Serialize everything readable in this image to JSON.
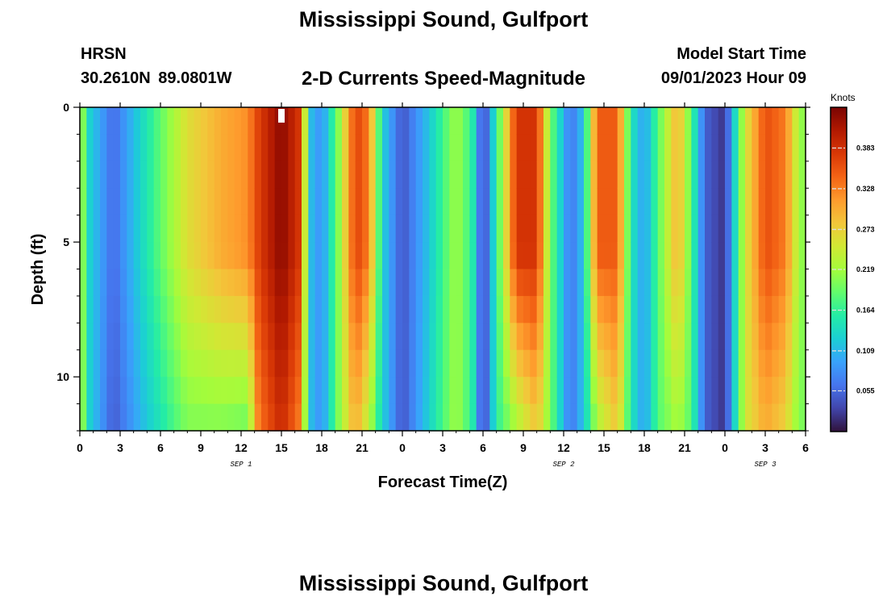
{
  "title": "Mississippi Sound, Gulfport",
  "station": {
    "id": "HRSN",
    "coords": "30.2610N  89.0801W"
  },
  "subtitle": "2-D Currents Speed-Magnitude",
  "model_start": {
    "label": "Model Start Time",
    "value": "09/01/2023 Hour 09"
  },
  "colors": {
    "colormap": [
      "#30123b",
      "#4145ab",
      "#4675ed",
      "#39a2fc",
      "#1bcfd4",
      "#24eca6",
      "#61fc6c",
      "#a4fc3b",
      "#d1e834",
      "#f3c63a",
      "#fe9b2d",
      "#f36315",
      "#d93806",
      "#b11901",
      "#7a0402"
    ],
    "marker": "#ffffff",
    "axis": "#000000"
  },
  "chart_data": {
    "type": "heatmap",
    "title": "2-D Currents Speed-Magnitude",
    "xlabel": "Forecast Time(Z)",
    "ylabel": "Depth (ft)",
    "x_range_hours": [
      0,
      54
    ],
    "x_step_hours": 0.5,
    "y_range_ft": [
      0,
      12
    ],
    "y_inverted": true,
    "x_ticks": {
      "hours": [
        0,
        3,
        6,
        9,
        12,
        15,
        18,
        21,
        24,
        27,
        30,
        33,
        36,
        39,
        42,
        45,
        48,
        51,
        54
      ],
      "labels": [
        "0",
        "3",
        "6",
        "9",
        "12",
        "15",
        "18",
        "21",
        "0",
        "3",
        "6",
        "9",
        "12",
        "15",
        "18",
        "21",
        "0",
        "3",
        "6"
      ]
    },
    "x_date_labels": [
      {
        "hour": 12,
        "label": "SEP 1"
      },
      {
        "hour": 36,
        "label": "SEP 2"
      },
      {
        "hour": 51,
        "label": "SEP 3"
      }
    ],
    "y_ticks": {
      "values": [
        0,
        5,
        10
      ],
      "labels": [
        "0",
        "5",
        "10"
      ]
    },
    "colorbar": {
      "unit": "Knots",
      "range": [
        0,
        0.438
      ],
      "ticks": [
        0.055,
        0.109,
        0.164,
        0.219,
        0.273,
        0.328,
        0.383
      ],
      "tick_labels": [
        "0.055",
        "0.109",
        "0.164",
        "0.219",
        "0.273",
        "0.328",
        "0.383"
      ]
    },
    "current_time_marker_hour": 15,
    "depth_profile_note": "speed per column stored as [surface, bottom]; intermediate depths interpolated",
    "speed_keyframes": [
      {
        "hour": 0.0,
        "surface": 0.24,
        "bottom": 0.24
      },
      {
        "hour": 0.7,
        "surface": 0.13,
        "bottom": 0.13
      },
      {
        "hour": 2.5,
        "surface": 0.055,
        "bottom": 0.045
      },
      {
        "hour": 5.0,
        "surface": 0.15,
        "bottom": 0.12
      },
      {
        "hour": 8.0,
        "surface": 0.26,
        "bottom": 0.2
      },
      {
        "hour": 10.5,
        "surface": 0.3,
        "bottom": 0.2
      },
      {
        "hour": 12.5,
        "surface": 0.32,
        "bottom": 0.19
      },
      {
        "hour": 13.3,
        "surface": 0.37,
        "bottom": 0.33
      },
      {
        "hour": 15.0,
        "surface": 0.43,
        "bottom": 0.39
      },
      {
        "hour": 16.5,
        "surface": 0.37,
        "bottom": 0.32
      },
      {
        "hour": 17.0,
        "surface": 0.12,
        "bottom": 0.12
      },
      {
        "hour": 18.0,
        "surface": 0.08,
        "bottom": 0.08
      },
      {
        "hour": 19.2,
        "surface": 0.2,
        "bottom": 0.2
      },
      {
        "hour": 20.5,
        "surface": 0.37,
        "bottom": 0.3
      },
      {
        "hour": 21.5,
        "surface": 0.33,
        "bottom": 0.23
      },
      {
        "hour": 22.5,
        "surface": 0.13,
        "bottom": 0.13
      },
      {
        "hour": 24.0,
        "surface": 0.04,
        "bottom": 0.04
      },
      {
        "hour": 26.0,
        "surface": 0.12,
        "bottom": 0.13
      },
      {
        "hour": 28.0,
        "surface": 0.22,
        "bottom": 0.22
      },
      {
        "hour": 29.2,
        "surface": 0.16,
        "bottom": 0.16
      },
      {
        "hour": 30.0,
        "surface": 0.02,
        "bottom": 0.02
      },
      {
        "hour": 31.0,
        "surface": 0.16,
        "bottom": 0.16
      },
      {
        "hour": 32.5,
        "surface": 0.38,
        "bottom": 0.22
      },
      {
        "hour": 34.0,
        "surface": 0.38,
        "bottom": 0.28
      },
      {
        "hour": 35.0,
        "surface": 0.2,
        "bottom": 0.2
      },
      {
        "hour": 36.5,
        "surface": 0.06,
        "bottom": 0.06
      },
      {
        "hour": 37.5,
        "surface": 0.12,
        "bottom": 0.12
      },
      {
        "hour": 38.5,
        "surface": 0.35,
        "bottom": 0.22
      },
      {
        "hour": 40.0,
        "surface": 0.35,
        "bottom": 0.28
      },
      {
        "hour": 41.0,
        "surface": 0.15,
        "bottom": 0.15
      },
      {
        "hour": 42.0,
        "surface": 0.09,
        "bottom": 0.09
      },
      {
        "hour": 43.0,
        "surface": 0.18,
        "bottom": 0.18
      },
      {
        "hour": 44.5,
        "surface": 0.3,
        "bottom": 0.22
      },
      {
        "hour": 45.5,
        "surface": 0.18,
        "bottom": 0.18
      },
      {
        "hour": 46.5,
        "surface": 0.05,
        "bottom": 0.05
      },
      {
        "hour": 48.0,
        "surface": 0.02,
        "bottom": 0.02
      },
      {
        "hour": 49.5,
        "surface": 0.25,
        "bottom": 0.25
      },
      {
        "hour": 51.0,
        "surface": 0.36,
        "bottom": 0.3
      },
      {
        "hour": 52.5,
        "surface": 0.33,
        "bottom": 0.27
      },
      {
        "hour": 53.5,
        "surface": 0.22,
        "bottom": 0.2
      },
      {
        "hour": 54.0,
        "surface": 0.2,
        "bottom": 0.2
      }
    ]
  }
}
